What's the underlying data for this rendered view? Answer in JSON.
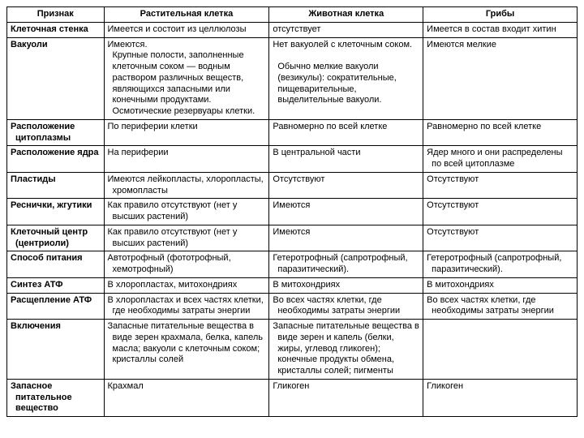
{
  "table": {
    "columns": [
      "Признак",
      "Растительная клетка",
      "Животная клетка",
      "Грибы"
    ],
    "rows": [
      {
        "label": "Клеточная стенка",
        "plant": "Имеется и состоит из целлюлозы",
        "animal": "отсутствует",
        "fungi": "Имеется в состав входит хитин"
      },
      {
        "label": "Вакуоли",
        "plant": "Имеются.\n   Крупные полости, заполненные клеточным соком — водным раствором различных веществ, являющихся запасными или конечными продуктами. Осмотические резервуары клетки.",
        "animal": "Нет вакуолей с клеточным соком.\n\n   Обычно мелкие вакуоли (везикулы): сократительные, пищеварительные, выделительные вакуоли.",
        "fungi": "Имеются мелкие"
      },
      {
        "label": "Расположение цитоплазмы",
        "plant": "По периферии клетки",
        "animal": "Равномерно по всей клетке",
        "fungi": "Равномерно по всей клетке"
      },
      {
        "label": "Расположение ядра",
        "plant": "На периферии",
        "animal": "В центральной части",
        "fungi": "Ядер много и они распределены по всей цитоплазме"
      },
      {
        "label": "Пластиды",
        "plant": "Имеются лейкопласты, хлоропласты, хромопласты",
        "animal": "Отсутствуют",
        "fungi": "Отсутствуют"
      },
      {
        "label": "Реснички, жгутики",
        "plant": "Как правило отсутствуют (нет у высших растений)",
        "animal": "Имеются",
        "fungi": "Отсутствуют"
      },
      {
        "label": "Клеточный центр (центриоли)",
        "plant": "Как правило отсутствуют (нет у высших растений)",
        "animal": "Имеются",
        "fungi": "Отсутствуют"
      },
      {
        "label": "Способ питания",
        "plant": "Автотрофный (фототрофный, хемотрофный)",
        "animal": "Гетеротрофный (сапротрофный, паразитический).",
        "fungi": "Гетеротрофный (сапротрофный, паразитический)."
      },
      {
        "label": "Синтез АТФ",
        "plant": "В хлоропластах, митохондриях",
        "animal": "В митохондриях",
        "fungi": "В митохондриях"
      },
      {
        "label": "Расщепление АТФ",
        "plant": "В хлоропластах и всех частях клетки, где необходимы затраты энергии",
        "animal": "Во всех частях клетки, где необходимы затраты энергии",
        "fungi": "Во всех частях клетки, где необходимы затраты энергии"
      },
      {
        "label": "Включения",
        "plant": "Запасные питательные вещества в виде зерен крахмала, белка, капель масла; вакуоли с клеточным соком; кристаллы солей",
        "animal": "Запасные питательные вещества в виде зерен и капель (белки, жиры, углевод гликоген); конечные продукты обмена, кристаллы солей; пигменты",
        "fungi": ""
      },
      {
        "label": "Запасное питательное вещество",
        "plant": "Крахмал",
        "animal": "Гликоген",
        "fungi": "Гликоген"
      }
    ]
  }
}
